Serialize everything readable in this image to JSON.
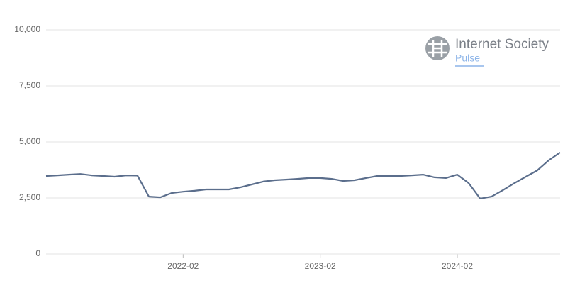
{
  "chart_data": {
    "type": "line",
    "logo": {
      "name": "Internet Society",
      "product": "Pulse"
    },
    "x": [
      "2021-02",
      "2021-03",
      "2021-04",
      "2021-05",
      "2021-06",
      "2021-07",
      "2021-08",
      "2021-09",
      "2021-10",
      "2021-11",
      "2021-12",
      "2022-01",
      "2022-02",
      "2022-03",
      "2022-04",
      "2022-05",
      "2022-06",
      "2022-07",
      "2022-08",
      "2022-09",
      "2022-10",
      "2022-11",
      "2022-12",
      "2023-01",
      "2023-02",
      "2023-03",
      "2023-04",
      "2023-05",
      "2023-06",
      "2023-07",
      "2023-08",
      "2023-09",
      "2023-10",
      "2023-11",
      "2023-12",
      "2024-01",
      "2024-02",
      "2024-03",
      "2024-04",
      "2024-05",
      "2024-06",
      "2024-07",
      "2024-08",
      "2024-09",
      "2024-10",
      "2024-11"
    ],
    "series": [
      {
        "color": "#5b6e8c",
        "values": [
          3480,
          3510,
          3540,
          3570,
          3510,
          3480,
          3450,
          3510,
          3500,
          2560,
          2530,
          2720,
          2780,
          2820,
          2880,
          2880,
          2880,
          2970,
          3100,
          3230,
          3290,
          3320,
          3350,
          3390,
          3390,
          3350,
          3260,
          3290,
          3390,
          3480,
          3480,
          3480,
          3510,
          3540,
          3420,
          3390,
          3540,
          3160,
          2470,
          2560,
          2850,
          3160,
          3450,
          3730,
          4180,
          4530
        ]
      }
    ],
    "xlim": [
      "2021-02",
      "2024-11"
    ],
    "xticks": [
      "2022-02",
      "2023-02",
      "2024-02"
    ],
    "ylim": [
      0,
      10000
    ],
    "yticks": [
      0,
      {
        "value": 2500,
        "label": "2,500"
      },
      {
        "value": 5000,
        "label": "5,000"
      },
      {
        "value": 7500,
        "label": "7,500"
      },
      {
        "value": 10000,
        "label": "10,000"
      }
    ],
    "grid": true
  }
}
